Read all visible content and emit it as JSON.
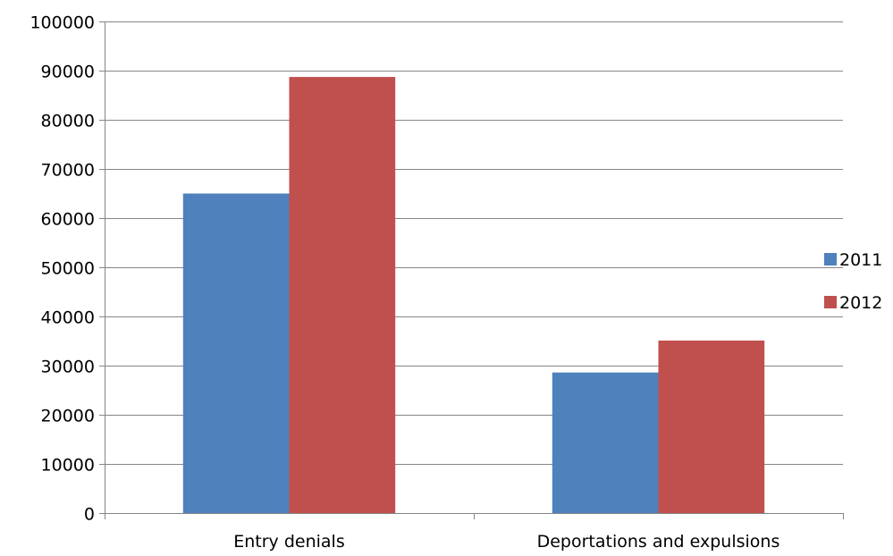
{
  "chart_data": {
    "type": "bar",
    "categories": [
      "Entry denials",
      "Deportations and expulsions"
    ],
    "series": [
      {
        "name": "2011",
        "values": [
          65000,
          28600
        ],
        "color": "#4f81bd"
      },
      {
        "name": "2012",
        "values": [
          88700,
          35100
        ],
        "color": "#c0504d"
      }
    ],
    "ylim": [
      0,
      100000
    ],
    "yticks": [
      0,
      10000,
      20000,
      30000,
      40000,
      50000,
      60000,
      70000,
      80000,
      90000,
      100000
    ],
    "ytick_labels": [
      "0",
      "10000",
      "20000",
      "30000",
      "40000",
      "50000",
      "60000",
      "70000",
      "80000",
      "90000",
      "100000"
    ],
    "grid": true,
    "legend_position": "right",
    "title": "",
    "xlabel": "",
    "ylabel": ""
  }
}
